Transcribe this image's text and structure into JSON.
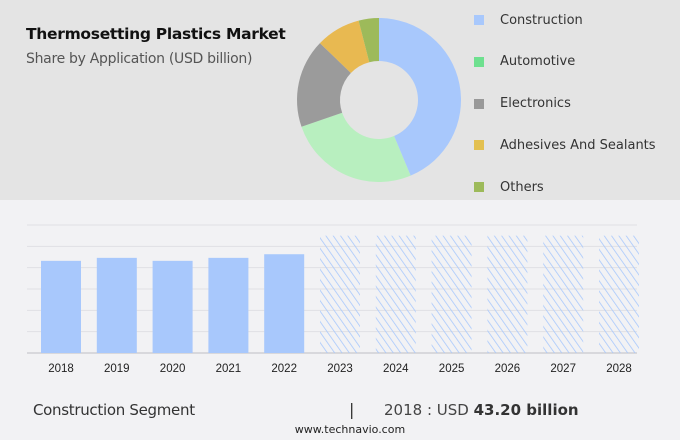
{
  "header": {
    "title": "Thermosetting Plastics Market",
    "subtitle": "Share by Application (USD billion)"
  },
  "chart_data": [
    {
      "type": "pie",
      "subtype": "donut",
      "categories": [
        "Construction",
        "Automotive",
        "Electronics",
        "Adhesives And Sealants",
        "Others"
      ],
      "values": [
        43.7,
        26.0,
        17.5,
        8.8,
        4.0
      ],
      "slice_colors": [
        "#a8c8fc",
        "#b8efbf",
        "#9b9b9b",
        "#e8b951",
        "#9dba5a"
      ],
      "legend_colors": [
        "#a8c8fc",
        "#6ee08f",
        "#999999",
        "#e3c050",
        "#9dba5a"
      ],
      "legend": "right"
    },
    {
      "type": "bar",
      "categories": [
        "2018",
        "2019",
        "2020",
        "2021",
        "2022",
        "2023",
        "2024",
        "2025",
        "2026",
        "2027",
        "2028"
      ],
      "values": [
        43.2,
        44.6,
        43.2,
        44.6,
        46.3,
        55,
        55,
        55,
        55,
        55,
        55
      ],
      "forecast_from": "2023",
      "bar_color": "#a8c8fc",
      "ylim": [
        0,
        60
      ],
      "grid": true,
      "y_tick_labels": false
    }
  ],
  "footer": {
    "segment": "Construction Segment",
    "separator": "|",
    "year_label": "2018 : USD",
    "value": "43.20 billion",
    "site": "www.technavio.com"
  }
}
